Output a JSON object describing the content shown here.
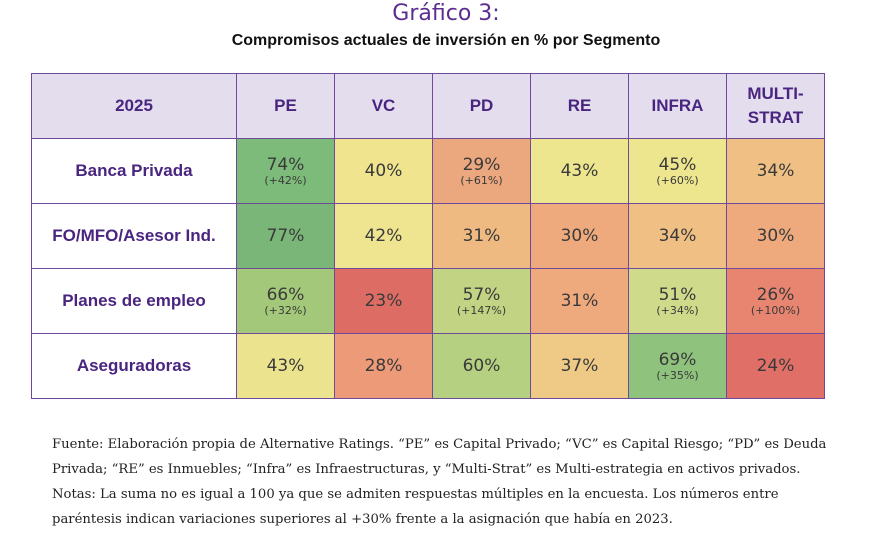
{
  "title": "Gráfico 3:",
  "subtitle": "Compromisos actuales de inversión en % por Segmento",
  "chart_data": {
    "type": "heatmap",
    "corner_label": "2025",
    "columns": [
      "PE",
      "VC",
      "PD",
      "RE",
      "INFRA",
      "MULTI-STRAT"
    ],
    "rows": [
      {
        "label": "Banca Privada",
        "values": [
          74,
          40,
          29,
          43,
          45,
          34
        ],
        "display": [
          "74%",
          "40%",
          "29%",
          "43%",
          "45%",
          "34%"
        ],
        "changes": [
          "(+42%)",
          "",
          "(+61%)",
          "",
          "(+60%)",
          ""
        ],
        "colors": [
          "#7dbb7a",
          "#f0e48e",
          "#eba77d",
          "#ede68f",
          "#ede68f",
          "#efbf84"
        ]
      },
      {
        "label": "FO/MFO/Asesor Ind.",
        "values": [
          77,
          42,
          31,
          30,
          34,
          30
        ],
        "display": [
          "77%",
          "42%",
          "31%",
          "30%",
          "34%",
          "30%"
        ],
        "changes": [
          "",
          "",
          "",
          "",
          "",
          ""
        ],
        "colors": [
          "#79b677",
          "#efe490",
          "#efb982",
          "#eeaa7d",
          "#efbf84",
          "#eeaa7d"
        ]
      },
      {
        "label": "Planes de empleo",
        "values": [
          66,
          23,
          57,
          31,
          51,
          26
        ],
        "display": [
          "66%",
          "23%",
          "57%",
          "31%",
          "51%",
          "26%"
        ],
        "changes": [
          "(+32%)",
          "",
          "(+147%)",
          "",
          "(+34%)",
          "(+100%)"
        ],
        "colors": [
          "#a4c879",
          "#dd6c64",
          "#c2d483",
          "#eeaa7d",
          "#cfda8a",
          "#e88571"
        ]
      },
      {
        "label": "Aseguradoras",
        "values": [
          43,
          28,
          60,
          37,
          69,
          24
        ],
        "display": [
          "43%",
          "28%",
          "60%",
          "37%",
          "69%",
          "24%"
        ],
        "changes": [
          "",
          "",
          "",
          "",
          "(+35%)",
          ""
        ],
        "colors": [
          "#ece38e",
          "#ec9a78",
          "#b5d080",
          "#efca87",
          "#8fc27d",
          "#e06f67"
        ]
      }
    ]
  },
  "notes": [
    "Fuente: Elaboración propia de Alternative Ratings. “PE” es Capital Privado; “VC” es Capital Riesgo; “PD” es Deuda",
    "Privada; “RE” es Inmuebles; “Infra” es Infraestructuras, y “Multi-Strat” es Multi-estrategia en activos privados.",
    "Notas: La suma no es igual a 100 ya que se admiten respuestas múltiples en la encuesta. Los números entre",
    "paréntesis indican variaciones superiores al +30% frente a la asignación que había en 2023."
  ]
}
